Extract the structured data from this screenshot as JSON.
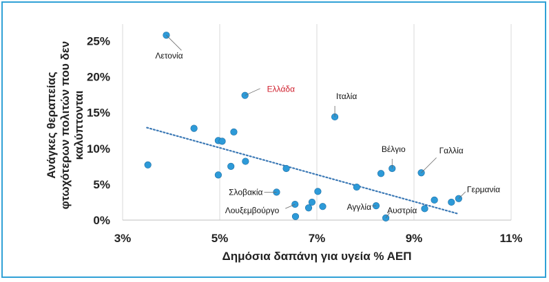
{
  "chart_data": {
    "type": "scatter",
    "xlabel": "Δημόσια δαπάνη για υγεία % ΑΕΠ",
    "ylabel_lines": [
      "Ανάγκες θεραπείας",
      "φτωχότερων πολιτών που δεν",
      "καλύπτονται"
    ],
    "xlim": [
      3,
      11
    ],
    "ylim": [
      0,
      27
    ],
    "x_ticks": [
      3,
      5,
      7,
      9,
      11
    ],
    "x_tick_labels": [
      "3%",
      "5%",
      "7%",
      "9%",
      "11%"
    ],
    "y_ticks": [
      0,
      5,
      10,
      15,
      20,
      25
    ],
    "y_tick_labels": [
      "0%",
      "5%",
      "10%",
      "15%",
      "20%",
      "25%"
    ],
    "grid": "vertical",
    "trendline": {
      "x": [
        3.5,
        9.9
      ],
      "y": [
        12.9,
        0.9
      ],
      "style": "dotted"
    },
    "colors": {
      "point": "#2d9ad8",
      "trend": "#3a78b5",
      "grid": "#d9d9d9",
      "highlight_label": "#d0202e",
      "frame": "#2fa0d6"
    },
    "points": [
      {
        "x": 3.52,
        "y": 7.7,
        "label": ""
      },
      {
        "x": 3.9,
        "y": 25.8,
        "label": "Λετονία"
      },
      {
        "x": 4.47,
        "y": 12.8,
        "label": ""
      },
      {
        "x": 4.97,
        "y": 11.1,
        "label": ""
      },
      {
        "x": 5.05,
        "y": 11.0,
        "label": ""
      },
      {
        "x": 4.97,
        "y": 6.3,
        "label": ""
      },
      {
        "x": 5.23,
        "y": 7.5,
        "label": ""
      },
      {
        "x": 5.29,
        "y": 12.3,
        "label": ""
      },
      {
        "x": 5.52,
        "y": 17.4,
        "label": "Ελλάδα",
        "highlight": true
      },
      {
        "x": 5.53,
        "y": 8.2,
        "label": ""
      },
      {
        "x": 6.17,
        "y": 3.9,
        "label": "Σλοβακία"
      },
      {
        "x": 6.37,
        "y": 7.2,
        "label": ""
      },
      {
        "x": 6.55,
        "y": 2.2,
        "label": "Λουξεμβούργο"
      },
      {
        "x": 6.56,
        "y": 0.5,
        "label": ""
      },
      {
        "x": 6.83,
        "y": 1.7,
        "label": ""
      },
      {
        "x": 6.9,
        "y": 2.5,
        "label": ""
      },
      {
        "x": 7.02,
        "y": 4.0,
        "label": ""
      },
      {
        "x": 7.12,
        "y": 1.9,
        "label": ""
      },
      {
        "x": 7.37,
        "y": 14.4,
        "label": "Ιταλία"
      },
      {
        "x": 7.82,
        "y": 4.6,
        "label": ""
      },
      {
        "x": 8.22,
        "y": 2.0,
        "label": "Αγγλία"
      },
      {
        "x": 8.32,
        "y": 6.5,
        "label": ""
      },
      {
        "x": 8.42,
        "y": 0.3,
        "label": "Αυστρία"
      },
      {
        "x": 8.55,
        "y": 7.2,
        "label": "Βέλγιο"
      },
      {
        "x": 9.15,
        "y": 6.6,
        "label": "Γαλλία"
      },
      {
        "x": 9.22,
        "y": 1.6,
        "label": ""
      },
      {
        "x": 9.42,
        "y": 2.8,
        "label": ""
      },
      {
        "x": 9.77,
        "y": 2.5,
        "label": ""
      },
      {
        "x": 9.92,
        "y": 3.0,
        "label": "Γερμανία"
      }
    ]
  }
}
